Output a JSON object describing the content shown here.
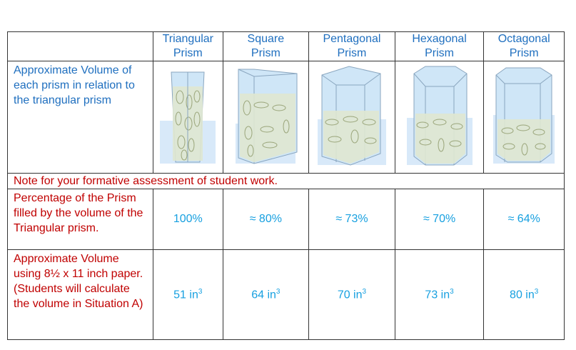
{
  "columns": [
    {
      "line1": "Triangular",
      "line2": "Prism"
    },
    {
      "line1": "Square",
      "line2": "Prism"
    },
    {
      "line1": "Pentagonal",
      "line2": "Prism"
    },
    {
      "line1": "Hexagonal",
      "line2": "Prism"
    },
    {
      "line1": "Octagonal",
      "line2": "Prism"
    }
  ],
  "row1_label": "Approximate Volume of each prism in relation to the triangular prism",
  "note": "Note for your formative assessment of student work.",
  "row2_label": "Percentage of the Prism filled by the volume of the Triangular prism.",
  "percentages": [
    "100%",
    "≈ 80%",
    "≈ 73%",
    "≈ 70%",
    "≈ 64%"
  ],
  "row3_label": "Approximate Volume using 8½ x 11 inch paper. (Students will calculate the volume in Situation A)",
  "volumes": [
    "51 in",
    "64 in",
    "70 in",
    "73 in",
    "80 in"
  ],
  "volume_unit_exponent": "3",
  "colors": {
    "header_text": "#1f6fbf",
    "red_text": "#c00000",
    "value_text": "#17a0e0",
    "prism_glass": "#cfe6f7",
    "rice": "#dfe7d0"
  }
}
